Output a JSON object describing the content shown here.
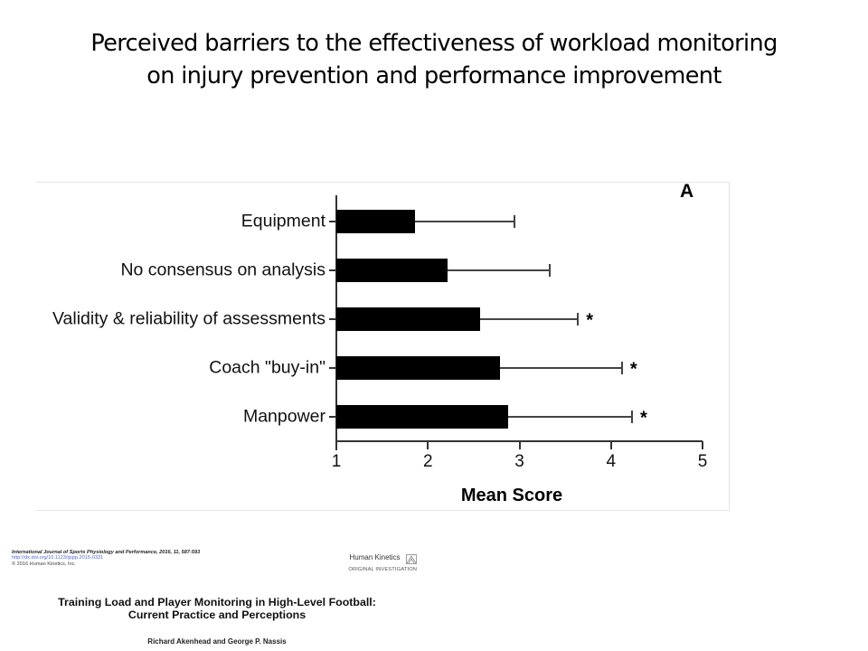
{
  "slide": {
    "title_lines": [
      "Perceived barriers to the effectiveness of workload monitoring",
      "on injury prevention and performance improvement"
    ]
  },
  "chart_data": {
    "type": "bar",
    "orientation": "horizontal",
    "panel_label": "A",
    "title": "",
    "xlabel": "Mean Score",
    "ylabel": "",
    "xlim": [
      1,
      5
    ],
    "x_ticks": [
      "1",
      "2",
      "3",
      "4",
      "5"
    ],
    "grid": false,
    "legend": null,
    "categories": [
      "Equipment",
      "No consensus on analysis",
      "Validity & reliability of assessments",
      "Coach \"buy-in\"",
      "Manpower"
    ],
    "values": [
      1.86,
      2.21,
      2.57,
      2.79,
      2.88
    ],
    "error_upper": [
      2.95,
      3.33,
      3.64,
      4.12,
      4.23
    ],
    "significance": [
      "",
      "",
      "*",
      "*",
      "*"
    ],
    "bar_color": "#000000"
  },
  "source": {
    "journal_line": "International Journal of Sports Physiology and Performance, 2016, 11, 587-593",
    "doi_line": "http://dx.doi.org/10.1123/ijspp.2015-0331",
    "copyright_line": "© 2016 Human Kinetics, Inc.",
    "publisher": "Human Kinetics",
    "article_type": "ORIGINAL INVESTIGATION",
    "paper_title_lines": [
      "Training Load and Player Monitoring in High-Level Football:",
      "Current Practice and Perceptions"
    ],
    "authors": "Richard Akenhead and George P. Nassis"
  }
}
